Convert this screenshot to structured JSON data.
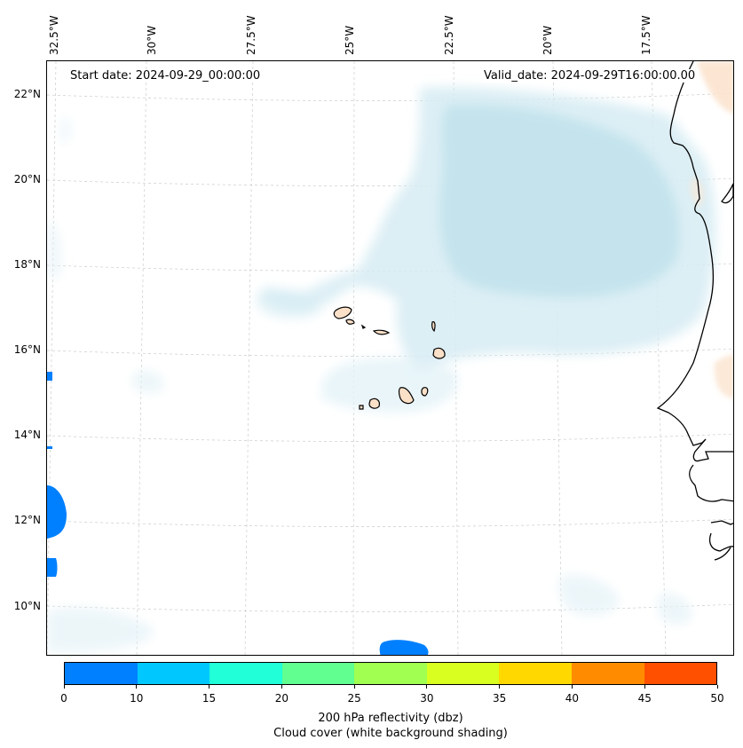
{
  "map": {
    "start_date": "Start date: 2024-09-29_00:00:00",
    "valid_date": "Valid_date: 2024-09-29T16:00:00.00",
    "lon_labels": [
      "32.5°W",
      "30°W",
      "27.5°W",
      "25°W",
      "22.5°W",
      "20°W",
      "17.5°W"
    ],
    "lat_labels": [
      "22°N",
      "20°N",
      "18°N",
      "16°N",
      "14°N",
      "12°N",
      "10°N"
    ]
  },
  "colorbar": {
    "ticks": [
      "0",
      "10",
      "15",
      "20",
      "25",
      "30",
      "35",
      "40",
      "45",
      "50"
    ],
    "colors": [
      "#0080ff",
      "#00c8ff",
      "#20ffd8",
      "#60ff90",
      "#a0ff50",
      "#d8ff20",
      "#ffd800",
      "#ff8c00",
      "#ff5000"
    ],
    "label_line1": "200 hPa reflectivity (dbz)",
    "label_line2": "Cloud cover (white background shading)"
  }
}
